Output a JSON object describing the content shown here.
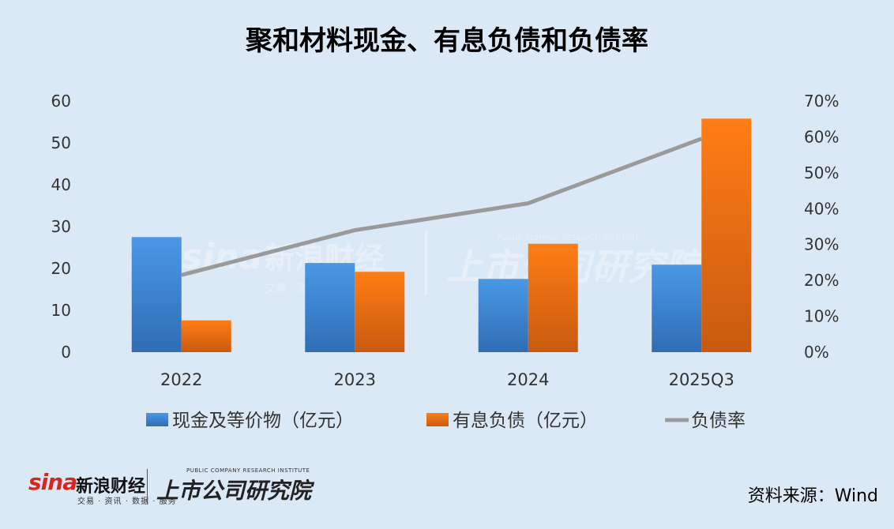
{
  "title": "聚和材料现金、有息负债和负债率",
  "source": "资料来源：Wind",
  "logo": {
    "sina": "sina",
    "brand": "新浪财经",
    "sub": "交易 · 资讯 · 数据 · 服务",
    "institute": "上市公司研究院",
    "institute_en": "PUBLIC COMPANY RESEARCH INSTITUTE"
  },
  "colors": {
    "cash": "#3d86d4",
    "debt": "#ef7418",
    "ratio": "#9a9a9a",
    "background": "#dbe8f5"
  },
  "chart_data": {
    "type": "bar",
    "categories": [
      "2022",
      "2023",
      "2024",
      "2025Q3"
    ],
    "series": [
      {
        "name": "现金及等价物（亿元）",
        "type": "bar",
        "axis": "left",
        "values": [
          27.5,
          21.3,
          17.5,
          20.9
        ]
      },
      {
        "name": "有息负债（亿元）",
        "type": "bar",
        "axis": "left",
        "values": [
          7.6,
          19.2,
          25.9,
          55.8
        ]
      },
      {
        "name": "负债率",
        "type": "line",
        "axis": "right",
        "values": [
          21.5,
          34.0,
          41.5,
          59.5
        ]
      }
    ],
    "ylim_left": [
      0,
      60
    ],
    "yticks_left": [
      "0",
      "10",
      "20",
      "30",
      "40",
      "50",
      "60"
    ],
    "ylim_right": [
      0,
      70
    ],
    "yticks_right": [
      "0%",
      "10%",
      "20%",
      "30%",
      "40%",
      "50%",
      "60%",
      "70%"
    ],
    "legend_placement": "bottom",
    "grid": false
  }
}
